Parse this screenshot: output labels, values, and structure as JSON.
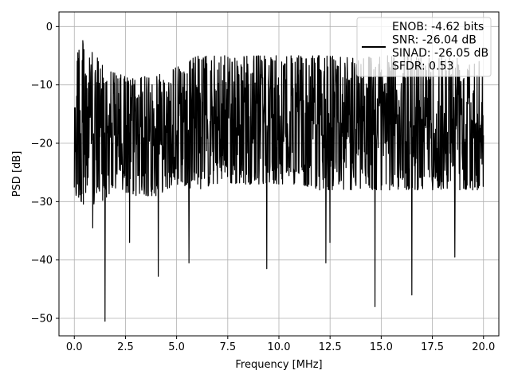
{
  "chart_data": {
    "type": "line",
    "title": "",
    "xlabel": "Frequency [MHz]",
    "ylabel": "PSD [dB]",
    "xlim": [
      -0.75,
      20.75
    ],
    "ylim": [
      -53,
      2.5
    ],
    "xticks": [
      0.0,
      2.5,
      5.0,
      7.5,
      10.0,
      12.5,
      15.0,
      17.5,
      20.0
    ],
    "xtick_labels": [
      "0.0",
      "2.5",
      "5.0",
      "7.5",
      "10.0",
      "12.5",
      "15.0",
      "17.5",
      "20.0"
    ],
    "yticks": [
      0,
      -10,
      -20,
      -30,
      -40,
      -50
    ],
    "ytick_labels": [
      "0",
      "−10",
      "−20",
      "−30",
      "−40",
      "−50"
    ],
    "grid": true,
    "legend": {
      "placement": "top-right",
      "entries": [
        "ENOB: -4.62 bits",
        "SNR: -26.04 dB",
        "SINAD: -26.05 dB",
        "SFDR: 0.53"
      ]
    },
    "series": [
      {
        "color": "#000000",
        "x_range": [
          0.0,
          20.0
        ],
        "envelope_upper": [
          -0.5,
          -5,
          -8,
          -9,
          -8,
          -7,
          -5,
          -5,
          -5,
          -5,
          -5,
          -5,
          -5,
          -5,
          -5,
          -5,
          -5,
          -5,
          -5,
          -5,
          -5
        ],
        "envelope_lower": [
          -30,
          -31,
          -28,
          -29,
          -29,
          -27,
          -28,
          -27,
          -27,
          -27,
          -27,
          -27,
          -28,
          -28,
          -28,
          -28,
          -28,
          -28,
          -28,
          -28,
          -28
        ],
        "dips": [
          {
            "x": 0.9,
            "y": -34.5
          },
          {
            "x": 1.5,
            "y": -50.5
          },
          {
            "x": 2.7,
            "y": -37
          },
          {
            "x": 4.1,
            "y": -42.8
          },
          {
            "x": 5.6,
            "y": -40.5
          },
          {
            "x": 9.4,
            "y": -41.5
          },
          {
            "x": 12.3,
            "y": -40.5
          },
          {
            "x": 12.5,
            "y": -37
          },
          {
            "x": 14.7,
            "y": -48
          },
          {
            "x": 16.5,
            "y": -46
          },
          {
            "x": 18.6,
            "y": -39.5
          }
        ]
      }
    ]
  }
}
